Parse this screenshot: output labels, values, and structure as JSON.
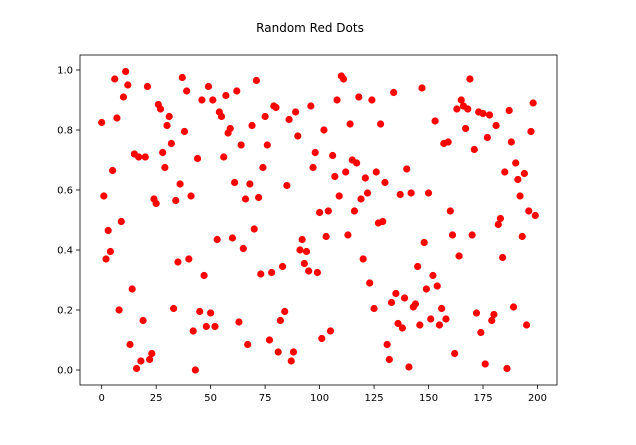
{
  "chart_data": {
    "type": "scatter",
    "title": "Random Red Dots",
    "xlabel": "",
    "ylabel": "",
    "xlim": [
      -9.95,
      208.95
    ],
    "ylim": [
      -0.05,
      1.05
    ],
    "xticks": [
      0,
      25,
      50,
      75,
      100,
      125,
      150,
      175,
      200
    ],
    "yticks": [
      0.0,
      0.2,
      0.4,
      0.6,
      0.8,
      1.0
    ],
    "xtick_labels": [
      "0",
      "25",
      "50",
      "75",
      "100",
      "125",
      "150",
      "175",
      "200"
    ],
    "ytick_labels": [
      "0.0",
      "0.2",
      "0.4",
      "0.6",
      "0.8",
      "1.0"
    ],
    "grid": false,
    "legend": "none",
    "marker_color": "#ff0000",
    "series": [
      {
        "x": [
          0,
          1,
          2,
          3,
          4,
          5,
          6,
          7,
          8,
          9,
          10,
          11,
          12,
          13,
          14,
          15,
          16,
          17,
          18,
          19,
          20,
          21,
          22,
          23,
          24,
          25,
          26,
          27,
          28,
          29,
          30,
          31,
          32,
          33,
          34,
          35,
          36,
          37,
          38,
          39,
          40,
          41,
          42,
          43,
          44,
          45,
          46,
          47,
          48,
          49,
          50,
          51,
          52,
          53,
          54,
          55,
          56,
          57,
          58,
          59,
          60,
          61,
          62,
          63,
          64,
          65,
          66,
          67,
          68,
          69,
          70,
          71,
          72,
          73,
          74,
          75,
          76,
          77,
          78,
          79,
          80,
          81,
          82,
          83,
          84,
          85,
          86,
          87,
          88,
          89,
          90,
          91,
          92,
          93,
          94,
          95,
          96,
          97,
          98,
          99,
          100,
          101,
          102,
          103,
          104,
          105,
          106,
          107,
          108,
          109,
          110,
          111,
          112,
          113,
          114,
          115,
          116,
          117,
          118,
          119,
          120,
          121,
          122,
          123,
          124,
          125,
          126,
          127,
          128,
          129,
          130,
          131,
          132,
          133,
          134,
          135,
          136,
          137,
          138,
          139,
          140,
          141,
          142,
          143,
          144,
          145,
          146,
          147,
          148,
          149,
          150,
          151,
          152,
          153,
          154,
          155,
          156,
          157,
          158,
          159,
          160,
          161,
          162,
          163,
          164,
          165,
          166,
          167,
          168,
          169,
          170,
          171,
          172,
          173,
          174,
          175,
          176,
          177,
          178,
          179,
          180,
          181,
          182,
          183,
          184,
          185,
          186,
          187,
          188,
          189,
          190,
          191,
          192,
          193,
          194,
          195,
          196,
          197,
          198,
          199
        ],
        "y": [
          0.825,
          0.58,
          0.37,
          0.465,
          0.395,
          0.665,
          0.97,
          0.84,
          0.2,
          0.495,
          0.91,
          0.995,
          0.95,
          0.085,
          0.27,
          0.72,
          0.005,
          0.71,
          0.03,
          0.165,
          0.71,
          0.945,
          0.035,
          0.055,
          0.57,
          0.555,
          0.885,
          0.87,
          0.725,
          0.675,
          0.815,
          0.845,
          0.755,
          0.205,
          0.565,
          0.36,
          0.62,
          0.975,
          0.795,
          0.93,
          0.37,
          0.58,
          0.13,
          0.0,
          0.705,
          0.195,
          0.9,
          0.315,
          0.145,
          0.945,
          0.19,
          0.9,
          0.145,
          0.435,
          0.86,
          0.845,
          0.71,
          0.915,
          0.79,
          0.805,
          0.44,
          0.625,
          0.93,
          0.16,
          0.75,
          0.405,
          0.57,
          0.085,
          0.62,
          0.815,
          0.47,
          0.965,
          0.575,
          0.32,
          0.675,
          0.845,
          0.75,
          0.1,
          0.325,
          0.88,
          0.875,
          0.06,
          0.165,
          0.345,
          0.195,
          0.615,
          0.835,
          0.03,
          0.06,
          0.86,
          0.78,
          0.4,
          0.435,
          0.355,
          0.395,
          0.33,
          0.88,
          0.675,
          0.725,
          0.325,
          0.525,
          0.105,
          0.8,
          0.445,
          0.53,
          0.13,
          0.715,
          0.645,
          0.9,
          0.58,
          0.98,
          0.97,
          0.66,
          0.45,
          0.82,
          0.7,
          0.53,
          0.69,
          0.91,
          0.57,
          0.37,
          0.64,
          0.59,
          0.29,
          0.9,
          0.205,
          0.66,
          0.49,
          0.82,
          0.495,
          0.625,
          0.085,
          0.035,
          0.225,
          0.925,
          0.255,
          0.155,
          0.585,
          0.14,
          0.24,
          0.67,
          0.01,
          0.59,
          0.21,
          0.22,
          0.345,
          0.15,
          0.94,
          0.425,
          0.27,
          0.59,
          0.17,
          0.315,
          0.83,
          0.28,
          0.15,
          0.205,
          0.755,
          0.17,
          0.76,
          0.53,
          0.45,
          0.055,
          0.87,
          0.38,
          0.9,
          0.88,
          0.805,
          0.87,
          0.97,
          0.45,
          0.735,
          0.19,
          0.86,
          0.125,
          0.855,
          0.02,
          0.775,
          0.85,
          0.165,
          0.185,
          0.815,
          0.485,
          0.505,
          0.375,
          0.66,
          0.005,
          0.865,
          0.76,
          0.21,
          0.69,
          0.635,
          0.58,
          0.445,
          0.655,
          0.15,
          0.53,
          0.795,
          0.89,
          0.515
        ]
      }
    ]
  }
}
